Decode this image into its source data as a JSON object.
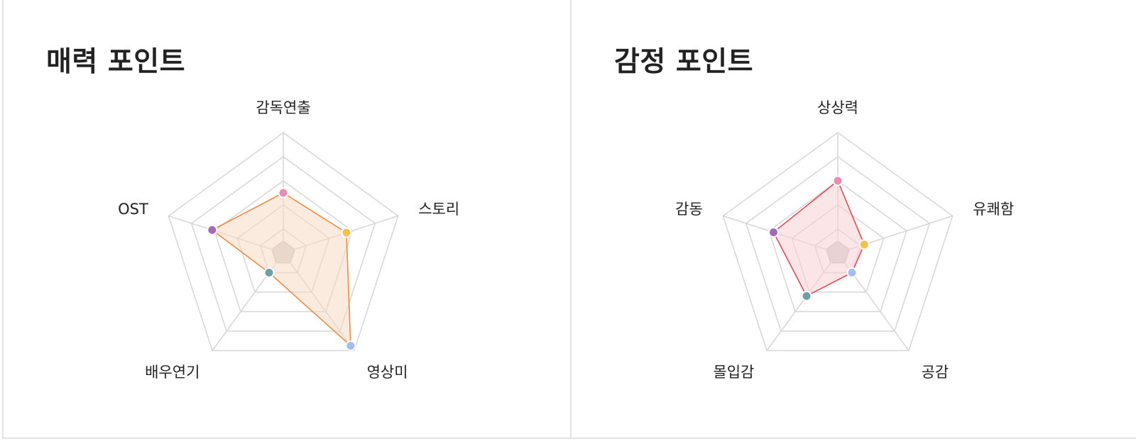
{
  "charts": {
    "left": {
      "title": "매력 포인트",
      "line_color": "#ef8a3e",
      "fill_color": "#f7d9c2"
    },
    "right": {
      "title": "감정 포인트",
      "line_color": "#e14b55",
      "fill_color": "#f7cfd3"
    }
  },
  "chart_data": [
    {
      "type": "radar",
      "title": "매력 포인트",
      "axes": [
        "감독연출",
        "스토리",
        "영상미",
        "배우연기",
        "OST"
      ],
      "values": [
        0.5,
        0.55,
        0.95,
        0.2,
        0.62
      ],
      "range": [
        0,
        1
      ],
      "rings": 5,
      "marker_colors": [
        "#ec8bb4",
        "#f3c24c",
        "#a5bdf7",
        "#6e9ea6",
        "#a46ab5"
      ]
    },
    {
      "type": "radar",
      "title": "감정 포인트",
      "axes": [
        "상상력",
        "유쾌함",
        "공감",
        "몰입감",
        "감동"
      ],
      "values": [
        0.6,
        0.23,
        0.2,
        0.44,
        0.56
      ],
      "range": [
        0,
        1
      ],
      "rings": 5,
      "marker_colors": [
        "#ec8bb4",
        "#f3c24c",
        "#a5bdf7",
        "#6e9ea6",
        "#a46ab5"
      ]
    }
  ]
}
